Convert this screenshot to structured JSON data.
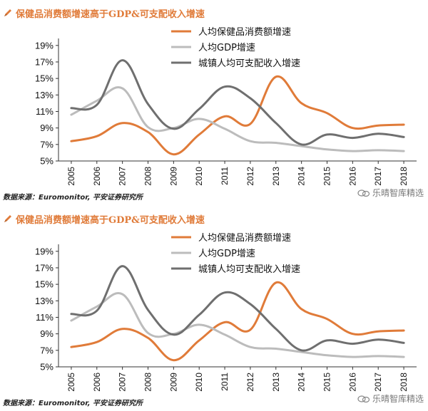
{
  "panels": [
    {
      "title": "保健品消费额增速高于GDP&可支配收入增速",
      "source": "数据来源：Euromonitor, 平安证券研究所",
      "watermark": "乐晴智库精选"
    },
    {
      "title": "保健品消费额增速高于GDP&可支配收入增速",
      "source": "数据来源：Euromonitor, 平安证券研究所",
      "watermark": "乐晴智库精选"
    }
  ],
  "chart_data": [
    {
      "type": "line",
      "title": "保健品消费额增速高于GDP&可支配收入增速",
      "x": [
        "2005",
        "2006",
        "2007",
        "2008",
        "2009",
        "2010",
        "2011",
        "2012",
        "2013",
        "2014",
        "2015",
        "2016",
        "2017",
        "2018"
      ],
      "y_ticks": [
        "5%",
        "7%",
        "9%",
        "11%",
        "13%",
        "15%",
        "17%",
        "19%"
      ],
      "ylim": [
        5,
        19.5
      ],
      "grid": false,
      "legend_position": "top-right",
      "series": [
        {
          "name": "人均保健品消费额增速",
          "color": "#e07b39",
          "values": [
            7.4,
            8.0,
            9.6,
            8.5,
            5.8,
            8.2,
            10.4,
            9.5,
            15.2,
            12.0,
            10.8,
            9.0,
            9.3,
            9.4
          ]
        },
        {
          "name": "人均GDP增速",
          "color": "#bcbcbc",
          "values": [
            10.6,
            12.3,
            13.8,
            9.1,
            9.0,
            10.1,
            8.9,
            7.4,
            7.2,
            6.8,
            6.4,
            6.2,
            6.3,
            6.2
          ]
        },
        {
          "name": "城镇人均可支配收入增速",
          "color": "#6f6f6f",
          "values": [
            11.4,
            11.8,
            17.2,
            11.9,
            8.9,
            11.3,
            14.0,
            12.6,
            9.6,
            7.0,
            8.2,
            7.8,
            8.3,
            7.9
          ]
        }
      ]
    },
    {
      "type": "line",
      "title": "保健品消费额增速高于GDP&可支配收入增速",
      "x": [
        "2005",
        "2006",
        "2007",
        "2008",
        "2009",
        "2010",
        "2011",
        "2012",
        "2013",
        "2014",
        "2015",
        "2016",
        "2017",
        "2018"
      ],
      "y_ticks": [
        "5%",
        "7%",
        "9%",
        "11%",
        "13%",
        "15%",
        "17%",
        "19%"
      ],
      "ylim": [
        5,
        19.5
      ],
      "grid": false,
      "legend_position": "top-right",
      "series": [
        {
          "name": "人均保健品消费额增速",
          "color": "#e07b39",
          "values": [
            7.4,
            8.0,
            9.6,
            8.5,
            5.8,
            8.2,
            10.4,
            9.5,
            15.2,
            12.0,
            10.8,
            9.0,
            9.3,
            9.4
          ]
        },
        {
          "name": "人均GDP增速",
          "color": "#bcbcbc",
          "values": [
            10.6,
            12.3,
            13.8,
            9.1,
            9.0,
            10.1,
            8.9,
            7.4,
            7.2,
            6.8,
            6.4,
            6.2,
            6.3,
            6.2
          ]
        },
        {
          "name": "城镇人均可支配收入增速",
          "color": "#6f6f6f",
          "values": [
            11.4,
            11.8,
            17.2,
            11.9,
            8.9,
            11.3,
            14.0,
            12.6,
            9.6,
            7.0,
            8.2,
            7.8,
            8.3,
            7.9
          ]
        }
      ]
    }
  ]
}
